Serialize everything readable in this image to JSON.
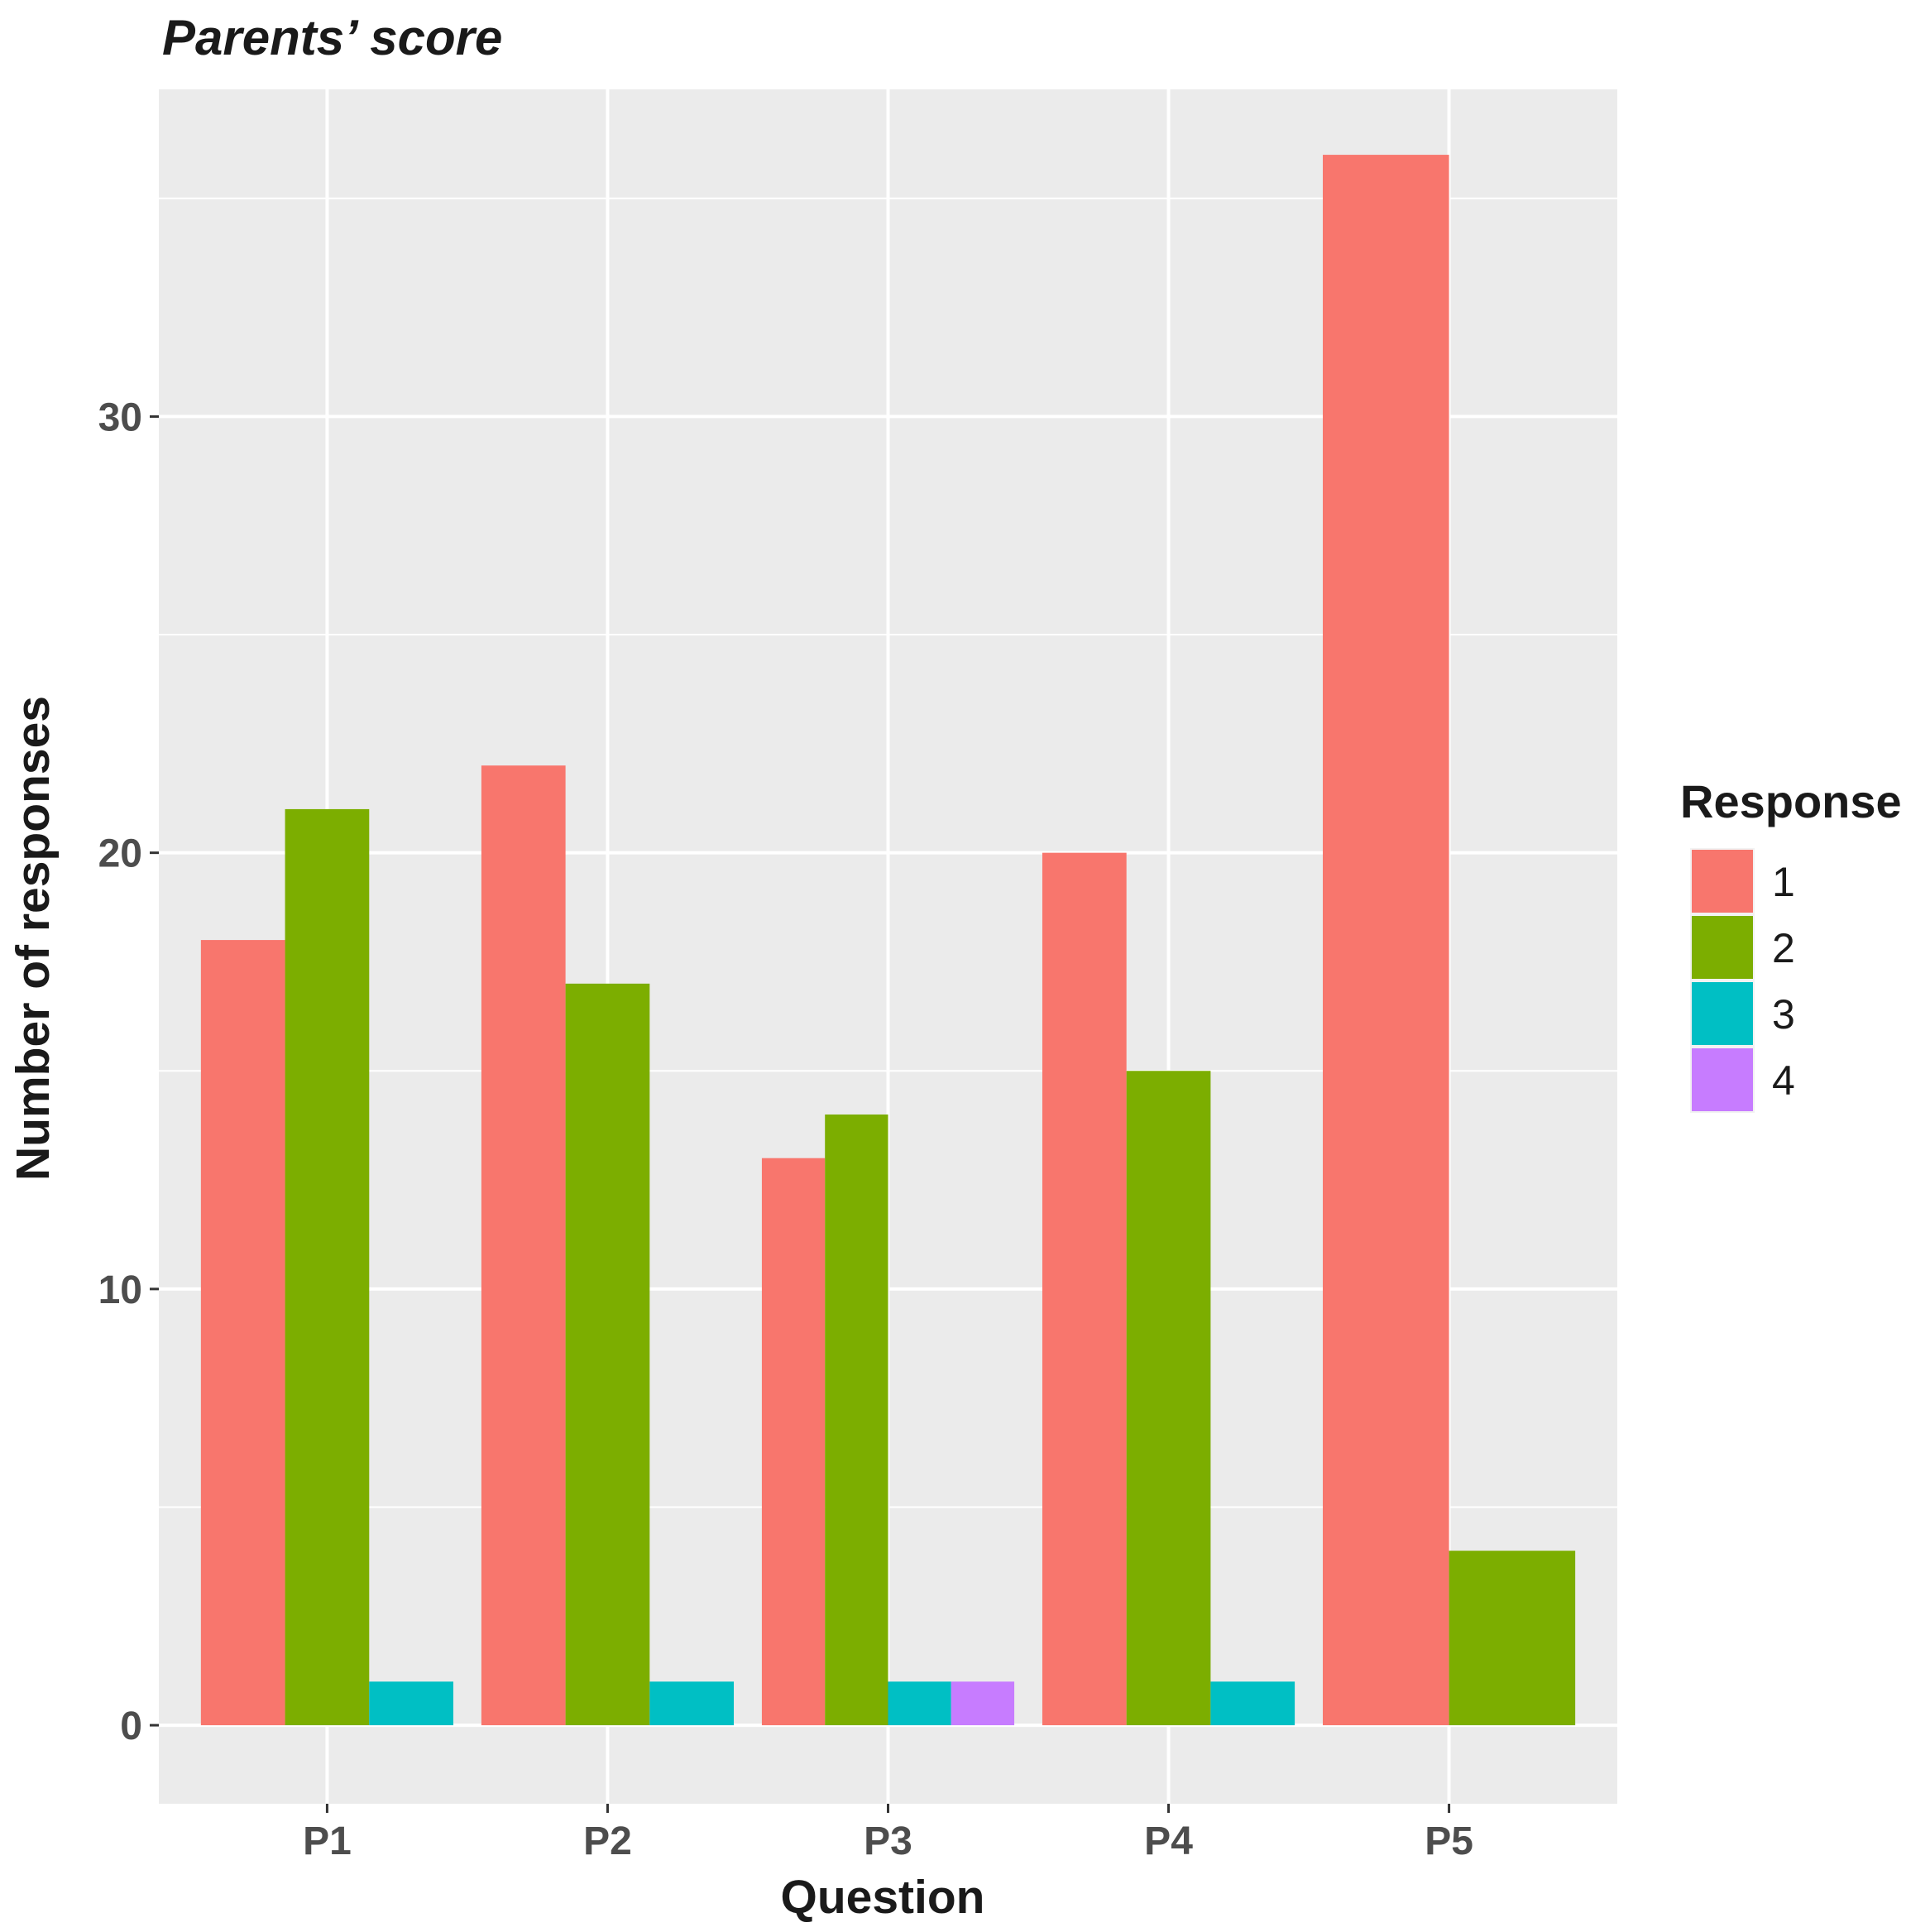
{
  "chart_data": {
    "type": "bar",
    "title": "Parents’ score",
    "xlabel": "Question",
    "ylabel": "Number of responses",
    "categories": [
      "P1",
      "P2",
      "P3",
      "P4",
      "P5"
    ],
    "ylim": [
      -1.8,
      37.5
    ],
    "yticks": [
      0,
      10,
      20,
      30
    ],
    "grid": true,
    "legend": {
      "title": "Response",
      "position": "right"
    },
    "series": [
      {
        "name": "1",
        "color": "#F8766D",
        "values": [
          18,
          22,
          13,
          20,
          36
        ]
      },
      {
        "name": "2",
        "color": "#7CAE00",
        "values": [
          21,
          17,
          14,
          15,
          4
        ]
      },
      {
        "name": "3",
        "color": "#00BFC4",
        "values": [
          1,
          1,
          1,
          1,
          0
        ]
      },
      {
        "name": "4",
        "color": "#C77CFF",
        "values": [
          0,
          0,
          1,
          0,
          0
        ]
      }
    ]
  }
}
